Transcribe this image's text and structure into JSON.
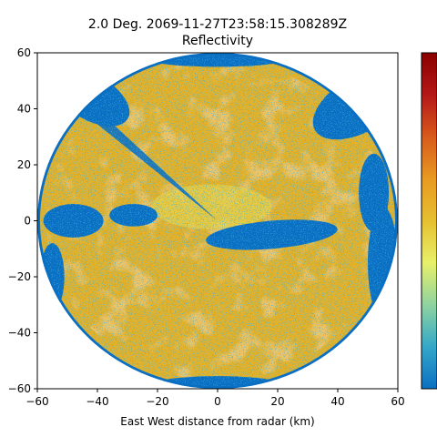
{
  "chart_data": {
    "type": "heatmap",
    "title": "2.0 Deg. 2069-11-27T23:58:15.308289Z",
    "subtitle": "Reflectivity",
    "xlabel": "East West distance from radar (km)",
    "ylabel": "",
    "xlim": [
      -60,
      60
    ],
    "ylim": [
      -60,
      60
    ],
    "xticks": [
      -60,
      -40,
      -20,
      0,
      20,
      40,
      60
    ],
    "yticks": [
      -60,
      -40,
      -20,
      0,
      20,
      40,
      60
    ],
    "tick_labels_x": [
      "−60",
      "−40",
      "−20",
      "0",
      "20",
      "40",
      "60"
    ],
    "tick_labels_y": [
      "−60",
      "−40",
      "−20",
      "0",
      "20",
      "40",
      "60"
    ],
    "max_range_km": 60,
    "grid": false,
    "colorbar": {
      "position": "right",
      "colors": [
        "#0a6fc2",
        "#34a8c8",
        "#8fd3a0",
        "#e8f06a",
        "#e6c030",
        "#e89a22",
        "#d85a1c",
        "#b41818",
        "#8a0000"
      ]
    },
    "palette": {
      "base": "#e3b22a",
      "light": "#e8d24a",
      "clear": "#0a6fc2",
      "strong": "#d88a22"
    }
  }
}
